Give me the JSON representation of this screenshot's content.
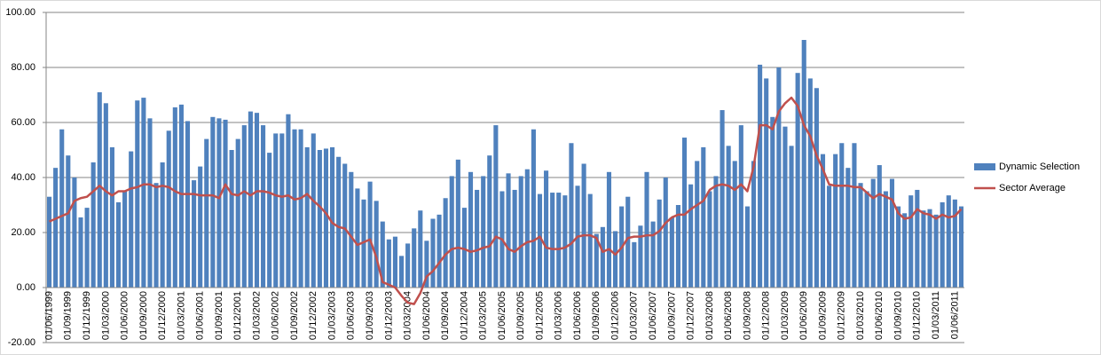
{
  "chart_data": {
    "type": "bar",
    "categories": [
      "01/06/1999",
      null,
      null,
      "01/09/1999",
      null,
      null,
      "01/12/1999",
      null,
      null,
      "01/03/2000",
      null,
      null,
      "01/06/2000",
      null,
      null,
      "01/09/2000",
      null,
      null,
      "01/12/2000",
      null,
      null,
      "01/03/2001",
      null,
      null,
      "01/06/2001",
      null,
      null,
      "01/09/2001",
      null,
      null,
      "01/12/2001",
      null,
      null,
      "01/03/2002",
      null,
      null,
      "01/06/2002",
      null,
      null,
      "01/09/2002",
      null,
      null,
      "01/12/2002",
      null,
      null,
      "01/03/2003",
      null,
      null,
      "01/06/2003",
      null,
      null,
      "01/09/2003",
      null,
      null,
      "01/12/2003",
      null,
      null,
      "01/03/2004",
      null,
      null,
      "01/06/2004",
      null,
      null,
      "01/09/2004",
      null,
      null,
      "01/12/2004",
      null,
      null,
      "01/03/2005",
      null,
      null,
      "01/06/2005",
      null,
      null,
      "01/09/2005",
      null,
      null,
      "01/12/2005",
      null,
      null,
      "01/03/2006",
      null,
      null,
      "01/06/2006",
      null,
      null,
      "01/09/2006",
      null,
      null,
      "01/12/2006",
      null,
      null,
      "01/03/2007",
      null,
      null,
      "01/06/2007",
      null,
      null,
      "01/09/2007",
      null,
      null,
      "01/12/2007",
      null,
      null,
      "01/03/2008",
      null,
      null,
      "01/06/2008",
      null,
      null,
      "01/09/2008",
      null,
      null,
      "01/12/2008",
      null,
      null,
      "01/03/2009",
      null,
      null,
      "01/06/2009",
      null,
      null,
      "01/09/2009",
      null,
      null,
      "01/12/2009",
      null,
      null,
      "01/03/2010",
      null,
      null,
      "01/06/2010",
      null,
      null,
      "01/09/2010",
      null,
      null,
      "01/12/2010",
      null,
      null,
      "01/03/2011",
      null,
      null,
      "01/06/2011",
      null
    ],
    "series": [
      {
        "name": "Dynamic Selection",
        "type": "bar",
        "color": "#4f81bd",
        "values": [
          33,
          43.5,
          57.5,
          48,
          40,
          25.5,
          29,
          45.5,
          71,
          67,
          51,
          31,
          35,
          49.5,
          68,
          69,
          61.5,
          38,
          45.5,
          57,
          65.5,
          66.5,
          60.5,
          39,
          44,
          54,
          62,
          61.5,
          61,
          50,
          54,
          59,
          64,
          63.5,
          59,
          49,
          56,
          56,
          63,
          57.5,
          57.5,
          51,
          56,
          50,
          50.5,
          51,
          47.5,
          45,
          42,
          36,
          32,
          38.5,
          31.5,
          24,
          17.5,
          18.5,
          11.5,
          16,
          21.5,
          28,
          17,
          25,
          26.5,
          32.5,
          40.5,
          46.5,
          29,
          42,
          35.5,
          40.5,
          48,
          59,
          35,
          41.5,
          35.5,
          40.5,
          43,
          57.5,
          34,
          42.5,
          34.5,
          34.5,
          33.5,
          52.5,
          37,
          45,
          34,
          19.5,
          22,
          42,
          20.5,
          29.5,
          33,
          16.5,
          22.5,
          42,
          24,
          32,
          40,
          25.5,
          30,
          54.5,
          37.5,
          46,
          51,
          35,
          40.5,
          64.5,
          51.5,
          46,
          59,
          29.5,
          46,
          81,
          76,
          62,
          80,
          58.5,
          51.5,
          78,
          90,
          76,
          72.5,
          48.5,
          37,
          48.5,
          52.5,
          43.5,
          52.5,
          38,
          35,
          39.5,
          44.5,
          35,
          39.5,
          29.5,
          27,
          33.5,
          35.5,
          28,
          28.5,
          26.5,
          31,
          33.5,
          32,
          29.5
        ]
      },
      {
        "name": "Sector Average",
        "type": "line",
        "color": "#c0504d",
        "values": [
          24,
          25,
          26,
          27,
          31.5,
          32.5,
          33,
          35,
          37,
          35,
          33.5,
          35,
          35,
          36,
          36.5,
          37.5,
          37.5,
          36.5,
          37,
          36.5,
          35,
          34,
          34,
          34,
          33.5,
          33.5,
          33.5,
          32.5,
          37.5,
          34,
          33.5,
          35,
          33.5,
          35,
          35,
          34.5,
          33.5,
          33,
          33.5,
          32,
          32.5,
          34,
          31.5,
          29.5,
          27,
          23.5,
          22,
          21.5,
          18.5,
          15.5,
          16.5,
          17.5,
          11,
          2,
          1,
          0,
          -3,
          -5.5,
          -6,
          -2,
          4,
          6,
          9,
          12,
          14,
          14.5,
          14,
          13,
          13.5,
          14.5,
          15,
          18.5,
          17.5,
          14,
          13,
          15,
          16.5,
          17,
          18.5,
          14.5,
          14,
          14,
          14.5,
          16,
          18.5,
          19,
          19,
          18,
          13,
          14,
          12,
          14.5,
          18,
          18.5,
          18.5,
          19,
          19,
          20.5,
          23.5,
          25.5,
          26.5,
          26.5,
          28.5,
          30,
          31.5,
          35.5,
          37,
          37.5,
          37,
          35.5,
          37.5,
          35,
          44,
          59,
          59,
          57.5,
          64,
          67,
          69,
          66,
          59,
          55,
          48,
          43,
          37.5,
          37,
          37,
          37,
          36.5,
          36.5,
          34.5,
          32.5,
          34,
          33,
          32,
          27,
          25,
          25.5,
          28.5,
          27,
          26.5,
          25,
          26.5,
          25.5,
          26,
          28.5
        ]
      }
    ],
    "ylim": [
      -20,
      100
    ],
    "yticks": [
      {
        "value": -20,
        "label": "-20.00"
      },
      {
        "value": 0,
        "label": "0.00"
      },
      {
        "value": 20,
        "label": "20.00"
      },
      {
        "value": 40,
        "label": "40.00"
      },
      {
        "value": 60,
        "label": "60.00"
      },
      {
        "value": 80,
        "label": "80.00"
      },
      {
        "value": 100,
        "label": "100.00"
      }
    ],
    "grid": true,
    "legend": "right"
  }
}
